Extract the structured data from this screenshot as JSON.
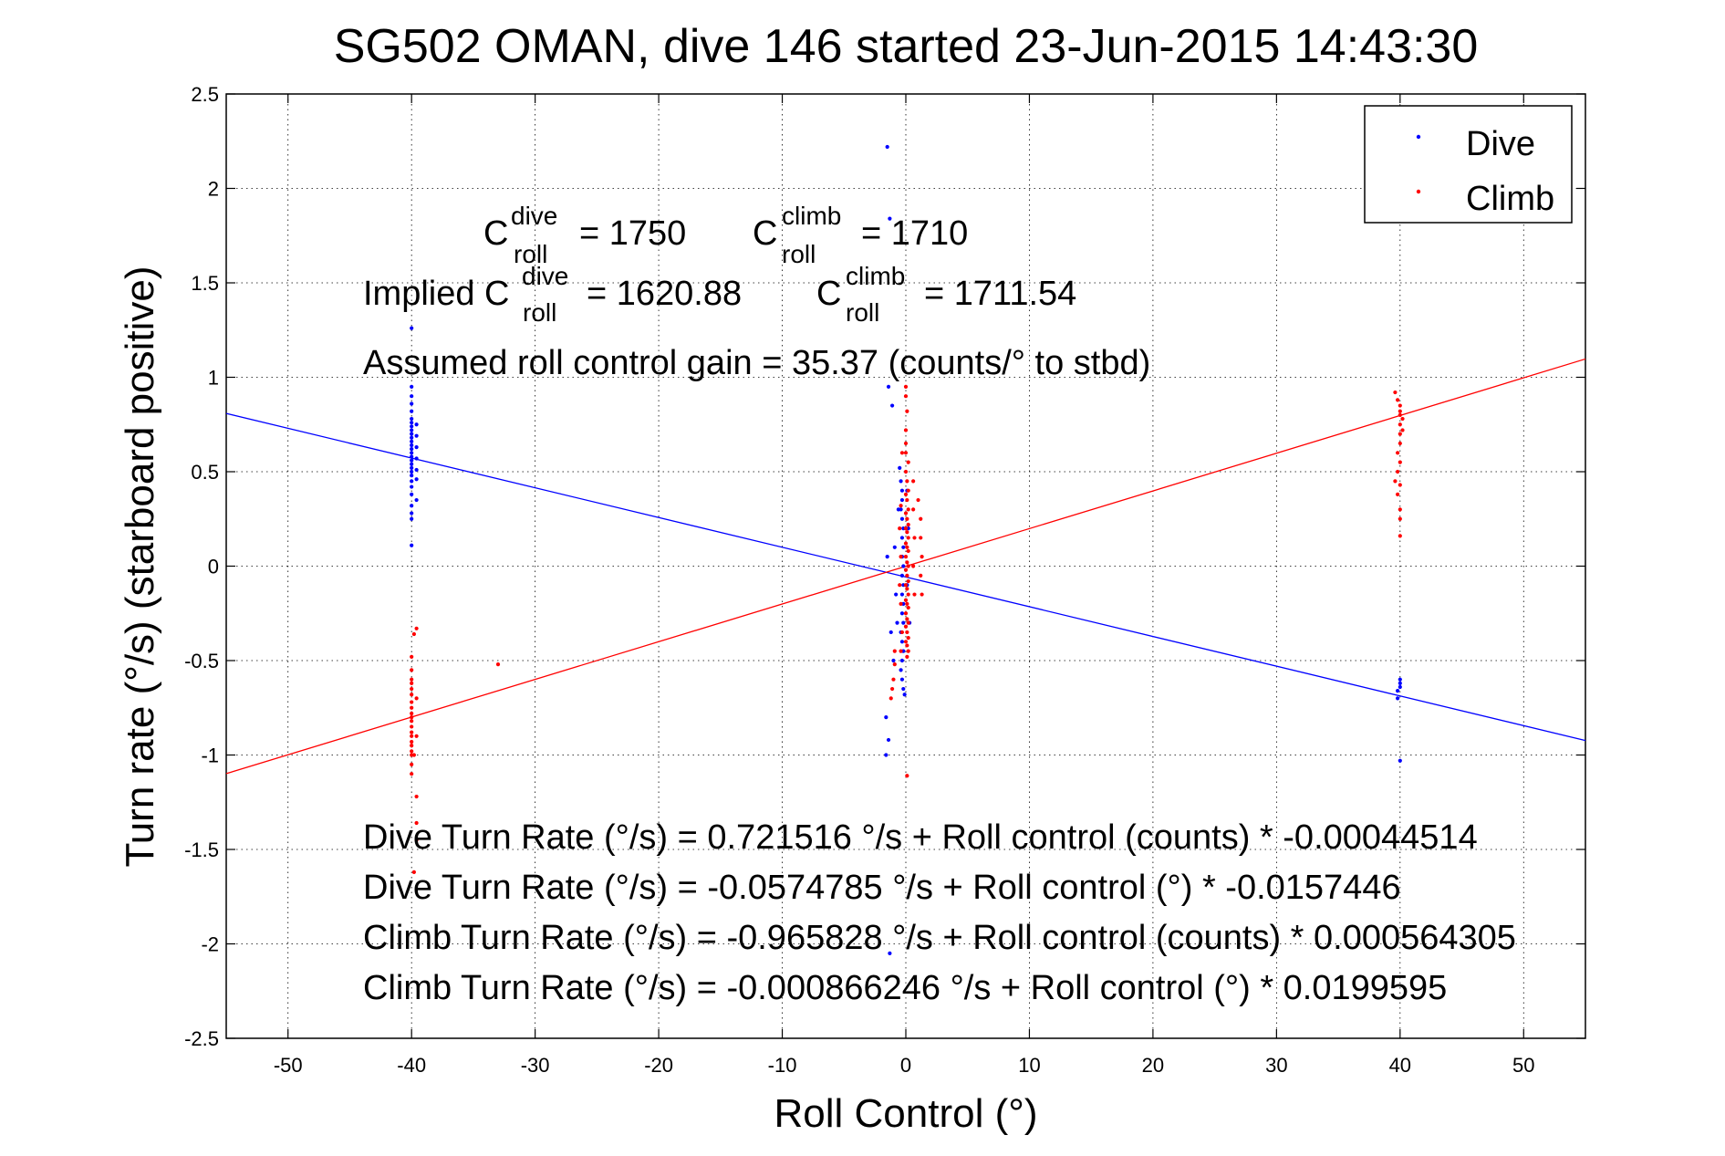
{
  "chart_data": {
    "type": "scatter",
    "title": "SG502 OMAN, dive 146 started 23-Jun-2015 14:43:30",
    "xlabel": "Roll Control (°)",
    "ylabel": "Turn rate (°/s) (starboard positive)",
    "xlim": [
      -55,
      55
    ],
    "ylim": [
      -2.5,
      2.5
    ],
    "xticks": [
      -50,
      -40,
      -30,
      -20,
      -10,
      0,
      10,
      20,
      30,
      40,
      50
    ],
    "yticks": [
      2.5,
      2,
      1.5,
      1,
      0.5,
      0,
      -0.5,
      -1,
      -1.5,
      -2,
      -2.5
    ],
    "xtick_labels": [
      "-50",
      "-40",
      "-30",
      "-20",
      "-10",
      "0",
      "10",
      "20",
      "30",
      "40",
      "50"
    ],
    "ytick_labels": [
      "2.5",
      "2",
      "1.5",
      "1",
      "0.5",
      "0",
      "-0.5",
      "-1",
      "-1.5",
      "-2",
      "-2.5"
    ],
    "grid": true,
    "legend_position": "top-right",
    "colors": {
      "dive": "#0000ff",
      "climb": "#ff0000"
    },
    "series": [
      {
        "name": "Dive",
        "color": "#0000ff",
        "marker": "point",
        "points": [
          [
            -40,
            1.26
          ],
          [
            -40,
            0.95
          ],
          [
            -40,
            0.9
          ],
          [
            -40,
            0.86
          ],
          [
            -40,
            0.82
          ],
          [
            -40,
            0.78
          ],
          [
            -40,
            0.76
          ],
          [
            -40,
            0.74
          ],
          [
            -40,
            0.72
          ],
          [
            -40,
            0.7
          ],
          [
            -40,
            0.68
          ],
          [
            -40,
            0.66
          ],
          [
            -40,
            0.64
          ],
          [
            -40,
            0.62
          ],
          [
            -40,
            0.6
          ],
          [
            -40,
            0.58
          ],
          [
            -40,
            0.56
          ],
          [
            -40,
            0.54
          ],
          [
            -40,
            0.52
          ],
          [
            -40,
            0.5
          ],
          [
            -40,
            0.48
          ],
          [
            -40,
            0.45
          ],
          [
            -40,
            0.42
          ],
          [
            -40,
            0.38
          ],
          [
            -40,
            0.32
          ],
          [
            -40,
            0.28
          ],
          [
            -40,
            0.25
          ],
          [
            -40,
            0.11
          ],
          [
            -39.6,
            0.75
          ],
          [
            -39.6,
            0.69
          ],
          [
            -39.6,
            0.63
          ],
          [
            -39.6,
            0.57
          ],
          [
            -39.6,
            0.51
          ],
          [
            -39.6,
            0.46
          ],
          [
            -39.6,
            0.35
          ],
          [
            -1.5,
            2.22
          ],
          [
            -1.3,
            1.84
          ],
          [
            -1.4,
            0.95
          ],
          [
            -1.1,
            0.85
          ],
          [
            -0.5,
            0.52
          ],
          [
            -0.4,
            0.45
          ],
          [
            -0.3,
            0.4
          ],
          [
            -0.3,
            0.35
          ],
          [
            -0.4,
            0.3
          ],
          [
            -0.3,
            0.25
          ],
          [
            -0.2,
            0.2
          ],
          [
            -0.3,
            0.15
          ],
          [
            -0.2,
            0.1
          ],
          [
            -0.3,
            0.05
          ],
          [
            -0.2,
            0.0
          ],
          [
            -0.3,
            -0.05
          ],
          [
            -0.2,
            -0.1
          ],
          [
            -0.3,
            -0.15
          ],
          [
            -0.2,
            -0.2
          ],
          [
            -0.3,
            -0.25
          ],
          [
            -0.2,
            -0.3
          ],
          [
            -0.4,
            -0.35
          ],
          [
            -0.3,
            -0.4
          ],
          [
            -0.2,
            -0.45
          ],
          [
            -0.3,
            -0.5
          ],
          [
            -0.4,
            -0.55
          ],
          [
            -0.3,
            -0.6
          ],
          [
            -0.2,
            -0.65
          ],
          [
            -0.1,
            -0.68
          ],
          [
            -0.8,
            -0.15
          ],
          [
            -0.9,
            0.1
          ],
          [
            -0.7,
            -0.3
          ],
          [
            -0.6,
            0.3
          ],
          [
            -1.5,
            0.05
          ],
          [
            -1.2,
            -0.35
          ],
          [
            -1.0,
            -0.5
          ],
          [
            -1.6,
            -0.8
          ],
          [
            -1.4,
            -0.92
          ],
          [
            -1.6,
            -1.0
          ],
          [
            -1.3,
            -2.05
          ],
          [
            0.2,
            0.2
          ],
          [
            0.1,
            -0.1
          ],
          [
            0.3,
            -0.3
          ],
          [
            0.1,
            0.4
          ],
          [
            40,
            -0.6
          ],
          [
            40,
            -0.62
          ],
          [
            40,
            -0.64
          ],
          [
            39.8,
            -0.66
          ],
          [
            39.8,
            -0.7
          ],
          [
            40,
            -1.03
          ]
        ]
      },
      {
        "name": "Climb",
        "color": "#ff0000",
        "marker": "point",
        "points": [
          [
            -39.6,
            -0.33
          ],
          [
            -39.8,
            -0.36
          ],
          [
            -40,
            -0.48
          ],
          [
            -40,
            -0.55
          ],
          [
            -40,
            -0.6
          ],
          [
            -40,
            -0.62
          ],
          [
            -40,
            -0.65
          ],
          [
            -40,
            -0.68
          ],
          [
            -40,
            -0.72
          ],
          [
            -40,
            -0.75
          ],
          [
            -40,
            -0.78
          ],
          [
            -40,
            -0.8
          ],
          [
            -40,
            -0.82
          ],
          [
            -40,
            -0.85
          ],
          [
            -40,
            -0.88
          ],
          [
            -40,
            -0.9
          ],
          [
            -40,
            -0.93
          ],
          [
            -40,
            -0.95
          ],
          [
            -40,
            -0.98
          ],
          [
            -40,
            -1.0
          ],
          [
            -40,
            -1.05
          ],
          [
            -40,
            -1.1
          ],
          [
            -39.6,
            -1.22
          ],
          [
            -39.6,
            -1.36
          ],
          [
            -39.6,
            -1.45
          ],
          [
            -39.8,
            -1.62
          ],
          [
            -39.6,
            -0.7
          ],
          [
            -39.6,
            -0.9
          ],
          [
            -39.8,
            -1.0
          ],
          [
            -33,
            -0.52
          ],
          [
            0,
            0.95
          ],
          [
            0,
            0.9
          ],
          [
            0.1,
            0.82
          ],
          [
            0,
            0.72
          ],
          [
            0,
            0.65
          ],
          [
            0,
            0.6
          ],
          [
            0.2,
            0.55
          ],
          [
            0,
            0.5
          ],
          [
            0.1,
            0.45
          ],
          [
            0.2,
            0.4
          ],
          [
            0,
            0.38
          ],
          [
            0.1,
            0.35
          ],
          [
            0.2,
            0.3
          ],
          [
            0,
            0.28
          ],
          [
            0.1,
            0.25
          ],
          [
            0.2,
            0.22
          ],
          [
            0,
            0.2
          ],
          [
            0.1,
            0.18
          ],
          [
            0.2,
            0.15
          ],
          [
            0,
            0.12
          ],
          [
            0.1,
            0.1
          ],
          [
            0.2,
            0.08
          ],
          [
            0,
            0.05
          ],
          [
            0.1,
            0.02
          ],
          [
            0.2,
            0.0
          ],
          [
            0,
            -0.02
          ],
          [
            0.1,
            -0.05
          ],
          [
            0.2,
            -0.08
          ],
          [
            0,
            -0.1
          ],
          [
            0.1,
            -0.12
          ],
          [
            0.2,
            -0.15
          ],
          [
            0,
            -0.18
          ],
          [
            0.1,
            -0.2
          ],
          [
            0.2,
            -0.22
          ],
          [
            0,
            -0.25
          ],
          [
            0.1,
            -0.28
          ],
          [
            0.2,
            -0.3
          ],
          [
            0,
            -0.32
          ],
          [
            0.1,
            -0.35
          ],
          [
            0.2,
            -0.38
          ],
          [
            0,
            -0.4
          ],
          [
            0.1,
            -0.42
          ],
          [
            0.2,
            -0.45
          ],
          [
            0.1,
            -0.48
          ],
          [
            -0.4,
            0.32
          ],
          [
            -0.5,
            0.2
          ],
          [
            -0.4,
            0.05
          ],
          [
            -0.5,
            -0.1
          ],
          [
            -0.4,
            -0.2
          ],
          [
            -0.3,
            -0.35
          ],
          [
            -0.4,
            -0.45
          ],
          [
            -0.3,
            0.6
          ],
          [
            0.6,
            0.3
          ],
          [
            0.7,
            0.15
          ],
          [
            0.6,
            0.0
          ],
          [
            0.7,
            -0.15
          ],
          [
            0.6,
            0.45
          ],
          [
            1.2,
            0.15
          ],
          [
            1.3,
            0.05
          ],
          [
            1.2,
            -0.05
          ],
          [
            1.3,
            -0.15
          ],
          [
            1.2,
            0.25
          ],
          [
            1.0,
            0.35
          ],
          [
            -0.9,
            -0.45
          ],
          [
            -0.9,
            -0.52
          ],
          [
            -1.0,
            -0.6
          ],
          [
            -1.1,
            -0.65
          ],
          [
            -1.2,
            -0.7
          ],
          [
            0.1,
            -1.11
          ],
          [
            39.6,
            0.92
          ],
          [
            39.8,
            0.88
          ],
          [
            40,
            0.85
          ],
          [
            40,
            0.82
          ],
          [
            40,
            0.8
          ],
          [
            40.2,
            0.78
          ],
          [
            40,
            0.75
          ],
          [
            40.2,
            0.72
          ],
          [
            40,
            0.7
          ],
          [
            40,
            0.65
          ],
          [
            39.8,
            0.6
          ],
          [
            40,
            0.55
          ],
          [
            39.8,
            0.5
          ],
          [
            39.6,
            0.45
          ],
          [
            40,
            0.43
          ],
          [
            39.8,
            0.38
          ],
          [
            40,
            0.3
          ],
          [
            40,
            0.25
          ],
          [
            40,
            0.16
          ]
        ]
      }
    ],
    "fit_lines": [
      {
        "name": "Dive fit",
        "color": "#0000ff",
        "intercept": -0.0574785,
        "slope": -0.0157446
      },
      {
        "name": "Climb fit",
        "color": "#ff0000",
        "intercept": -0.000866246,
        "slope": 0.0199595
      }
    ],
    "annotations": {
      "c_roll_dive_label": "C",
      "c_roll_dive_sup": "dive",
      "c_roll_dive_sub": "roll",
      "c_roll_dive_value": "= 1750",
      "c_roll_climb_label": "C",
      "c_roll_climb_sup": "climb",
      "c_roll_climb_sub": "roll",
      "c_roll_climb_value": "= 1710",
      "implied_prefix": "Implied C",
      "implied_dive_sup": "dive",
      "implied_dive_sub": "roll",
      "implied_dive_value": "= 1620.88",
      "implied_climb_label": "C",
      "implied_climb_sup": "climb",
      "implied_climb_sub": "roll",
      "implied_climb_value": "= 1711.54",
      "gain": "Assumed roll control gain = 35.37 (counts/° to stbd)",
      "eq1": "Dive Turn Rate (°/s) = 0.721516 °/s + Roll control (counts) * -0.00044514",
      "eq2": "Dive Turn Rate (°/s) = -0.0574785 °/s + Roll control (°) * -0.0157446",
      "eq3": "Climb Turn Rate (°/s) = -0.965828 °/s + Roll control (counts) * 0.000564305",
      "eq4": "Climb Turn Rate (°/s) = -0.000866246 °/s + Roll control (°) * 0.0199595"
    }
  }
}
